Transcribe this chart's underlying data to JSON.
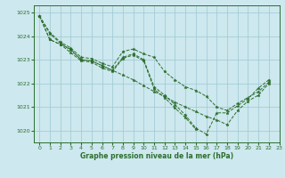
{
  "title": "Graphe pression niveau de la mer (hPa)",
  "bg_color": "#cde8ee",
  "grid_color": "#9dc8d2",
  "line_color": "#2d6e2d",
  "marker_color": "#2d6e2d",
  "xlim": [
    -0.5,
    23
  ],
  "ylim": [
    1019.5,
    1025.3
  ],
  "xticks": [
    0,
    1,
    2,
    3,
    4,
    5,
    6,
    7,
    8,
    9,
    10,
    11,
    12,
    13,
    14,
    15,
    16,
    17,
    18,
    19,
    20,
    21,
    22,
    23
  ],
  "yticks": [
    1020,
    1021,
    1022,
    1023,
    1024,
    1025
  ],
  "series": [
    [
      0,
      1024.85,
      1,
      1024.15,
      2,
      1023.75,
      3,
      1023.5,
      4,
      1023.1,
      5,
      1023.05,
      6,
      1022.85,
      7,
      1022.7,
      8,
      1023.35,
      9,
      1023.45,
      10,
      1023.25,
      11,
      1023.1,
      12,
      1022.5,
      13,
      1022.15,
      14,
      1021.85,
      15,
      1021.7,
      16,
      1021.45,
      17,
      1021.0,
      18,
      1020.85,
      19,
      1021.15,
      20,
      1021.4,
      21,
      1021.65,
      22,
      1022.05
    ],
    [
      0,
      1024.85,
      1,
      1023.85,
      2,
      1023.65,
      3,
      1023.45,
      4,
      1023.0,
      5,
      1022.95,
      6,
      1022.75,
      7,
      1022.55,
      8,
      1023.1,
      9,
      1023.25,
      10,
      1023.0,
      11,
      1021.85,
      12,
      1021.5,
      13,
      1021.1,
      14,
      1020.65,
      15,
      1020.1,
      16,
      1019.85,
      17,
      1020.75,
      18,
      1020.75,
      19,
      1021.05,
      20,
      1021.35,
      21,
      1021.8,
      22,
      1022.15
    ],
    [
      0,
      1024.85,
      1,
      1023.85,
      2,
      1023.65,
      3,
      1023.3,
      4,
      1022.95,
      5,
      1022.9,
      6,
      1022.65,
      7,
      1022.5,
      8,
      1023.05,
      9,
      1023.2,
      10,
      1022.95,
      11,
      1021.75,
      12,
      1021.4,
      13,
      1020.95,
      14,
      1020.55,
      15,
      1020.05
    ],
    [
      0,
      1024.85,
      1,
      1024.1,
      2,
      1023.7,
      3,
      1023.4,
      4,
      1023.0,
      5,
      1022.95,
      6,
      1022.75,
      7,
      1022.55,
      8,
      1022.35,
      9,
      1022.15,
      10,
      1021.9,
      11,
      1021.65,
      12,
      1021.45,
      13,
      1021.2,
      14,
      1021.0,
      15,
      1020.8,
      16,
      1020.6,
      17,
      1020.45,
      18,
      1020.25,
      19,
      1020.85,
      20,
      1021.25,
      21,
      1021.5,
      22,
      1022.0
    ]
  ]
}
